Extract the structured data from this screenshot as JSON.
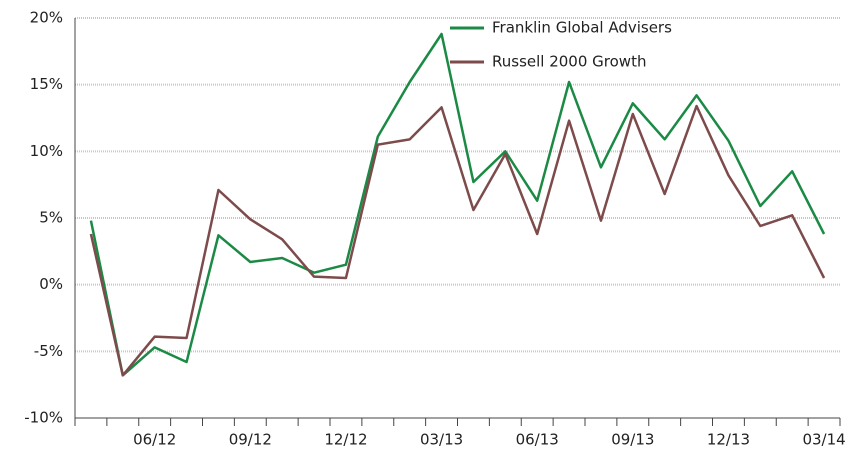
{
  "chart_data": {
    "type": "line",
    "categories": [
      null,
      null,
      "06/12",
      null,
      null,
      "09/12",
      null,
      null,
      "12/12",
      null,
      null,
      "03/13",
      null,
      null,
      "06/13",
      null,
      null,
      "09/13",
      null,
      null,
      "12/13",
      null,
      null,
      "03/14"
    ],
    "series": [
      {
        "name": "Franklin Global Advisers",
        "color": "#1b8a45",
        "values": [
          4.8,
          -6.8,
          -4.7,
          -5.8,
          3.7,
          1.7,
          2.0,
          0.9,
          1.5,
          11.1,
          15.2,
          18.8,
          7.7,
          10.0,
          6.3,
          15.2,
          8.8,
          13.6,
          10.9,
          14.2,
          10.8,
          5.9,
          8.5,
          3.8
        ]
      },
      {
        "name": "Russell 2000 Growth",
        "color": "#7d4b4b",
        "values": [
          3.8,
          -6.8,
          -3.9,
          -4.0,
          7.1,
          4.9,
          3.4,
          0.6,
          0.5,
          10.5,
          10.9,
          13.3,
          5.6,
          9.8,
          3.8,
          12.3,
          4.8,
          12.8,
          6.8,
          13.4,
          8.2,
          4.4,
          5.2,
          0.5
        ]
      }
    ],
    "ylim": [
      -10,
      20
    ],
    "yticks": [
      {
        "value": -10,
        "label": "-10%"
      },
      {
        "value": -5,
        "label": "-5%"
      },
      {
        "value": 0,
        "label": "0%"
      },
      {
        "value": 5,
        "label": "5%"
      },
      {
        "value": 10,
        "label": "10%"
      },
      {
        "value": 15,
        "label": "15%"
      },
      {
        "value": 20,
        "label": "20%"
      }
    ],
    "grid": true,
    "legend": "top"
  }
}
